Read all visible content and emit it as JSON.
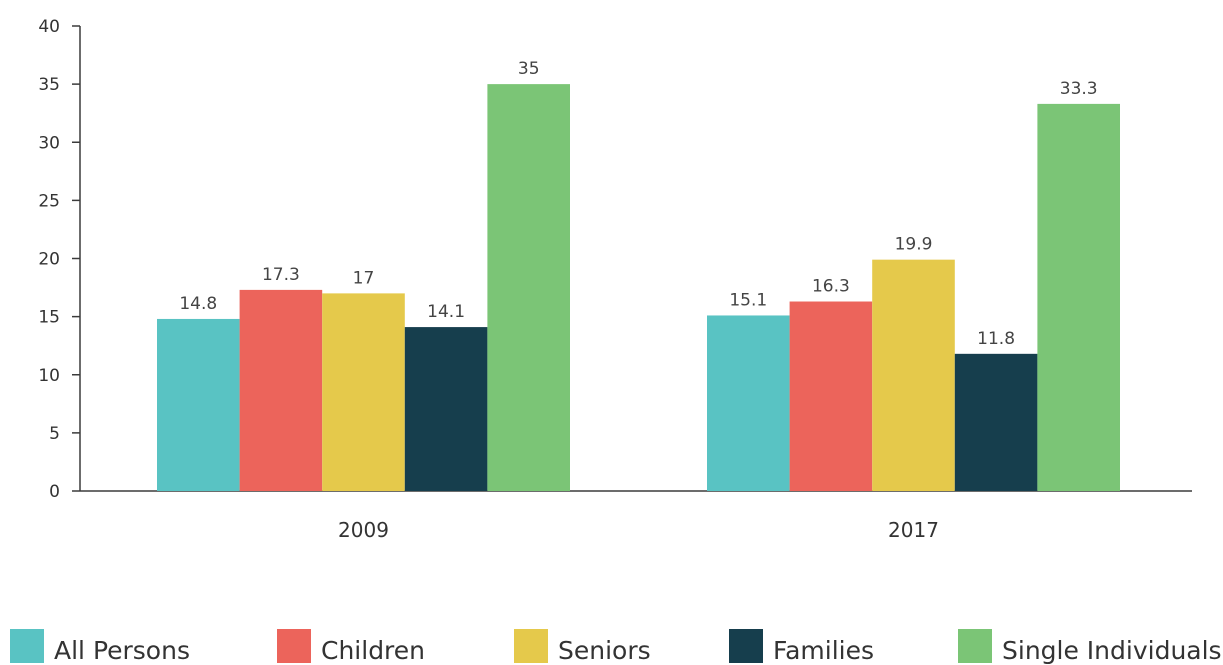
{
  "chart_data": {
    "type": "bar",
    "categories": [
      "2009",
      "2017"
    ],
    "series": [
      {
        "name": "All Persons",
        "color": "#59c3c3",
        "values": [
          14.8,
          15.1
        ],
        "labels": [
          "14.8",
          "15.1"
        ]
      },
      {
        "name": "Children",
        "color": "#ec645b",
        "values": [
          17.3,
          16.3
        ],
        "labels": [
          "17.3",
          "16.3"
        ]
      },
      {
        "name": "Seniors",
        "color": "#e5c94b",
        "values": [
          17,
          19.9
        ],
        "labels": [
          "17",
          "19.9"
        ]
      },
      {
        "name": "Families",
        "color": "#163e4d",
        "values": [
          14.1,
          11.8
        ],
        "labels": [
          "14.1",
          "11.8"
        ]
      },
      {
        "name": "Single Individuals",
        "color": "#7bc576",
        "values": [
          35,
          33.3
        ],
        "labels": [
          "35",
          "33.3"
        ]
      }
    ],
    "ylim": [
      0,
      40
    ],
    "yticks": [
      "0",
      "5",
      "10",
      "15",
      "20",
      "25",
      "30",
      "35",
      "40"
    ],
    "xlabel": "",
    "ylabel": "",
    "legend_position": "bottom",
    "grid": false
  }
}
